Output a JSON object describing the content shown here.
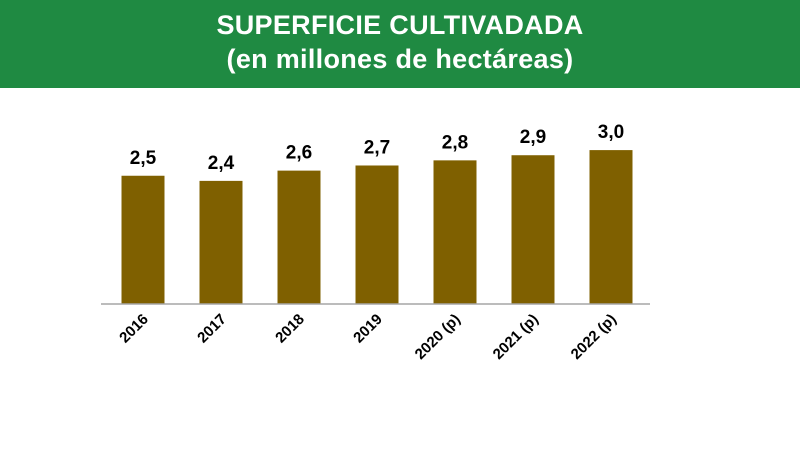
{
  "colors": {
    "header_bg": "#1f8a42",
    "bar": "#7f6000",
    "axis": "#a6a6a6"
  },
  "header": {
    "title": "SUPERFICIE CULTIVADADA",
    "subtitle": "(en millones de hectáreas)"
  },
  "chart_data": {
    "type": "bar",
    "title": "SUPERFICIE CULTIVADADA",
    "subtitle": "(en millones de hectáreas)",
    "categories": [
      "2016",
      "2017",
      "2018",
      "2019",
      "2020 (p)",
      "2021 (p)",
      "2022 (p)"
    ],
    "values": [
      2.5,
      2.4,
      2.6,
      2.7,
      2.8,
      2.9,
      3.0
    ],
    "value_labels": [
      "2,5",
      "2,4",
      "2,6",
      "2,7",
      "2,8",
      "2,9",
      "3,0"
    ],
    "xlabel": "",
    "ylabel": "",
    "ylim": [
      0,
      3.0
    ],
    "grid": false,
    "legend": "none"
  }
}
